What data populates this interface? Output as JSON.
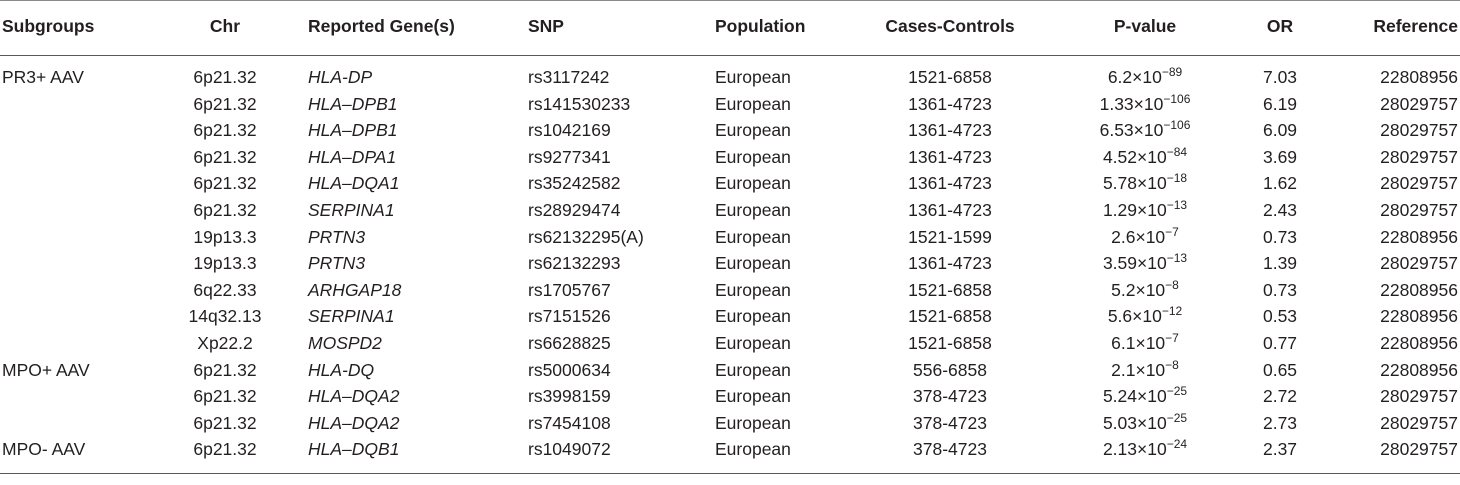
{
  "headers": [
    "Subgroups",
    "Chr",
    "Reported Gene(s)",
    "SNP",
    "Population",
    "Cases-Controls",
    "P-value",
    "OR",
    "Reference"
  ],
  "rows": [
    {
      "subgroup": "PR3+ AAV",
      "chr": "6p21.32",
      "gene": "HLA-DP",
      "snp": "rs3117242",
      "population": "European",
      "cases_controls": "1521-6858",
      "p_mant": "6.2×10",
      "p_exp": "−89",
      "or": "7.03",
      "reference": "22808956"
    },
    {
      "subgroup": "",
      "chr": "6p21.32",
      "gene": "HLA–DPB1",
      "snp": "rs141530233",
      "population": "European",
      "cases_controls": "1361-4723",
      "p_mant": "1.33×10",
      "p_exp": "−106",
      "or": "6.19",
      "reference": "28029757"
    },
    {
      "subgroup": "",
      "chr": "6p21.32",
      "gene": "HLA–DPB1",
      "snp": "rs1042169",
      "population": "European",
      "cases_controls": "1361-4723",
      "p_mant": "6.53×10",
      "p_exp": "−106",
      "or": "6.09",
      "reference": "28029757"
    },
    {
      "subgroup": "",
      "chr": "6p21.32",
      "gene": "HLA–DPA1",
      "snp": "rs9277341",
      "population": "European",
      "cases_controls": "1361-4723",
      "p_mant": "4.52×10",
      "p_exp": "−84",
      "or": "3.69",
      "reference": "28029757"
    },
    {
      "subgroup": "",
      "chr": "6p21.32",
      "gene": "HLA–DQA1",
      "snp": "rs35242582",
      "population": "European",
      "cases_controls": "1361-4723",
      "p_mant": "5.78×10",
      "p_exp": "−18",
      "or": "1.62",
      "reference": "28029757"
    },
    {
      "subgroup": "",
      "chr": "6p21.32",
      "gene": "SERPINA1",
      "snp": "rs28929474",
      "population": "European",
      "cases_controls": "1361-4723",
      "p_mant": "1.29×10",
      "p_exp": "−13",
      "or": "2.43",
      "reference": "28029757"
    },
    {
      "subgroup": "",
      "chr": "19p13.3",
      "gene": "PRTN3",
      "snp": "rs62132295(A)",
      "population": "European",
      "cases_controls": "1521-1599",
      "p_mant": "2.6×10",
      "p_exp": "−7",
      "or": "0.73",
      "reference": "22808956"
    },
    {
      "subgroup": "",
      "chr": "19p13.3",
      "gene": "PRTN3",
      "snp": "rs62132293",
      "population": "European",
      "cases_controls": "1361-4723",
      "p_mant": "3.59×10",
      "p_exp": "−13",
      "or": "1.39",
      "reference": "28029757"
    },
    {
      "subgroup": "",
      "chr": "6q22.33",
      "gene": "ARHGAP18",
      "snp": "rs1705767",
      "population": "European",
      "cases_controls": "1521-6858",
      "p_mant": "5.2×10",
      "p_exp": "−8",
      "or": "0.73",
      "reference": "22808956"
    },
    {
      "subgroup": "",
      "chr": "14q32.13",
      "gene": "SERPINA1",
      "snp": "rs7151526",
      "population": "European",
      "cases_controls": "1521-6858",
      "p_mant": "5.6×10",
      "p_exp": "−12",
      "or": "0.53",
      "reference": "22808956"
    },
    {
      "subgroup": "",
      "chr": "Xp22.2",
      "gene": "MOSPD2",
      "snp": "rs6628825",
      "population": "European",
      "cases_controls": "1521-6858",
      "p_mant": "6.1×10",
      "p_exp": "−7",
      "or": "0.77",
      "reference": "22808956"
    },
    {
      "subgroup": "MPO+ AAV",
      "chr": "6p21.32",
      "gene": "HLA-DQ",
      "snp": "rs5000634",
      "population": "European",
      "cases_controls": "556-6858",
      "p_mant": "2.1×10",
      "p_exp": "−8",
      "or": "0.65",
      "reference": "22808956"
    },
    {
      "subgroup": "",
      "chr": "6p21.32",
      "gene": "HLA–DQA2",
      "snp": "rs3998159",
      "population": "European",
      "cases_controls": "378-4723",
      "p_mant": "5.24×10",
      "p_exp": "−25",
      "or": "2.72",
      "reference": "28029757"
    },
    {
      "subgroup": "",
      "chr": "6p21.32",
      "gene": "HLA–DQA2",
      "snp": "rs7454108",
      "population": "European",
      "cases_controls": "378-4723",
      "p_mant": "5.03×10",
      "p_exp": "−25",
      "or": "2.73",
      "reference": "28029757"
    },
    {
      "subgroup": "MPO- AAV",
      "chr": "6p21.32",
      "gene": "HLA–DQB1",
      "snp": "rs1049072",
      "population": "European",
      "cases_controls": "378-4723",
      "p_mant": "2.13×10",
      "p_exp": "−24",
      "or": "2.37",
      "reference": "28029757"
    }
  ]
}
